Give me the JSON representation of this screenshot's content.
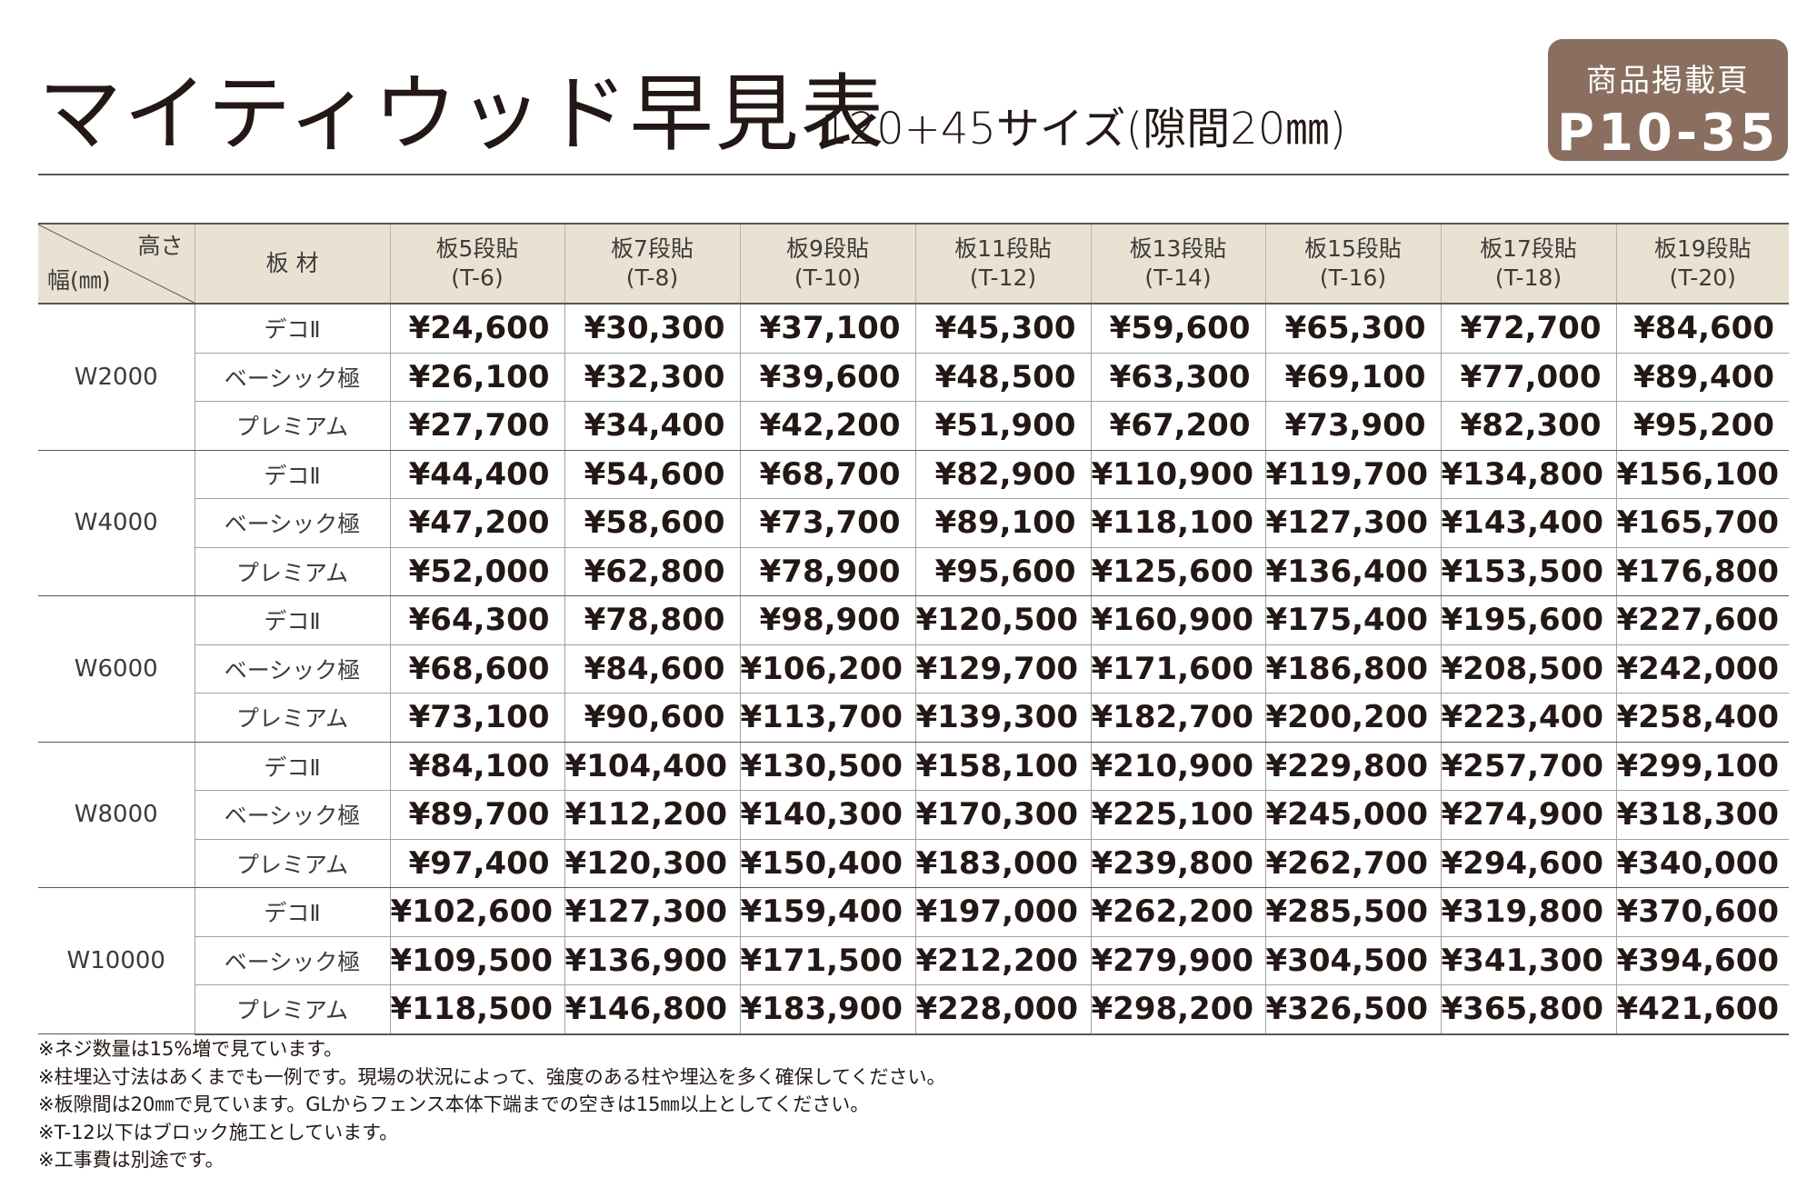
{
  "header": {
    "title": "マイティウッド早見表",
    "subtitle": "120+45サイズ(隙間20㎜)",
    "badge_label": "商品掲載頁",
    "badge_page": "P10-35"
  },
  "table": {
    "corner_height": "高さ",
    "corner_width": "幅(㎜)",
    "material_header": "板 材",
    "columns": [
      {
        "line1": "板5段貼",
        "line2": "(T-6)"
      },
      {
        "line1": "板7段貼",
        "line2": "(T-8)"
      },
      {
        "line1": "板9段貼",
        "line2": "(T-10)"
      },
      {
        "line1": "板11段貼",
        "line2": "(T-12)"
      },
      {
        "line1": "板13段貼",
        "line2": "(T-14)"
      },
      {
        "line1": "板15段貼",
        "line2": "(T-16)"
      },
      {
        "line1": "板17段貼",
        "line2": "(T-18)"
      },
      {
        "line1": "板19段貼",
        "line2": "(T-20)"
      }
    ],
    "groups": [
      {
        "width": "W2000",
        "rows": [
          {
            "material": "デコⅡ",
            "prices": [
              "¥24,600",
              "¥30,300",
              "¥37,100",
              "¥45,300",
              "¥59,600",
              "¥65,300",
              "¥72,700",
              "¥84,600"
            ]
          },
          {
            "material": "ベーシック極",
            "prices": [
              "¥26,100",
              "¥32,300",
              "¥39,600",
              "¥48,500",
              "¥63,300",
              "¥69,100",
              "¥77,000",
              "¥89,400"
            ]
          },
          {
            "material": "プレミアム",
            "prices": [
              "¥27,700",
              "¥34,400",
              "¥42,200",
              "¥51,900",
              "¥67,200",
              "¥73,900",
              "¥82,300",
              "¥95,200"
            ]
          }
        ]
      },
      {
        "width": "W4000",
        "rows": [
          {
            "material": "デコⅡ",
            "prices": [
              "¥44,400",
              "¥54,600",
              "¥68,700",
              "¥82,900",
              "¥110,900",
              "¥119,700",
              "¥134,800",
              "¥156,100"
            ]
          },
          {
            "material": "ベーシック極",
            "prices": [
              "¥47,200",
              "¥58,600",
              "¥73,700",
              "¥89,100",
              "¥118,100",
              "¥127,300",
              "¥143,400",
              "¥165,700"
            ]
          },
          {
            "material": "プレミアム",
            "prices": [
              "¥52,000",
              "¥62,800",
              "¥78,900",
              "¥95,600",
              "¥125,600",
              "¥136,400",
              "¥153,500",
              "¥176,800"
            ]
          }
        ]
      },
      {
        "width": "W6000",
        "rows": [
          {
            "material": "デコⅡ",
            "prices": [
              "¥64,300",
              "¥78,800",
              "¥98,900",
              "¥120,500",
              "¥160,900",
              "¥175,400",
              "¥195,600",
              "¥227,600"
            ]
          },
          {
            "material": "ベーシック極",
            "prices": [
              "¥68,600",
              "¥84,600",
              "¥106,200",
              "¥129,700",
              "¥171,600",
              "¥186,800",
              "¥208,500",
              "¥242,000"
            ]
          },
          {
            "material": "プレミアム",
            "prices": [
              "¥73,100",
              "¥90,600",
              "¥113,700",
              "¥139,300",
              "¥182,700",
              "¥200,200",
              "¥223,400",
              "¥258,400"
            ]
          }
        ]
      },
      {
        "width": "W8000",
        "rows": [
          {
            "material": "デコⅡ",
            "prices": [
              "¥84,100",
              "¥104,400",
              "¥130,500",
              "¥158,100",
              "¥210,900",
              "¥229,800",
              "¥257,700",
              "¥299,100"
            ]
          },
          {
            "material": "ベーシック極",
            "prices": [
              "¥89,700",
              "¥112,200",
              "¥140,300",
              "¥170,300",
              "¥225,100",
              "¥245,000",
              "¥274,900",
              "¥318,300"
            ]
          },
          {
            "material": "プレミアム",
            "prices": [
              "¥97,400",
              "¥120,300",
              "¥150,400",
              "¥183,000",
              "¥239,800",
              "¥262,700",
              "¥294,600",
              "¥340,000"
            ]
          }
        ]
      },
      {
        "width": "W10000",
        "rows": [
          {
            "material": "デコⅡ",
            "prices": [
              "¥102,600",
              "¥127,300",
              "¥159,400",
              "¥197,000",
              "¥262,200",
              "¥285,500",
              "¥319,800",
              "¥370,600"
            ]
          },
          {
            "material": "ベーシック極",
            "prices": [
              "¥109,500",
              "¥136,900",
              "¥171,500",
              "¥212,200",
              "¥279,900",
              "¥304,500",
              "¥341,300",
              "¥394,600"
            ]
          },
          {
            "material": "プレミアム",
            "prices": [
              "¥118,500",
              "¥146,800",
              "¥183,900",
              "¥228,000",
              "¥298,200",
              "¥326,500",
              "¥365,800",
              "¥421,600"
            ]
          }
        ]
      }
    ]
  },
  "notes": [
    "※ネジ数量は15%増で見ています。",
    "※柱埋込寸法はあくまでも一例です。現場の状況によって、強度のある柱や埋込を多く確保してください。",
    "※板隙間は20㎜で見ています。GLからフェンス本体下端までの空きは15㎜以上としてください。",
    "※T-12以下はブロック施工としています。",
    "※工事費は別途です。"
  ]
}
